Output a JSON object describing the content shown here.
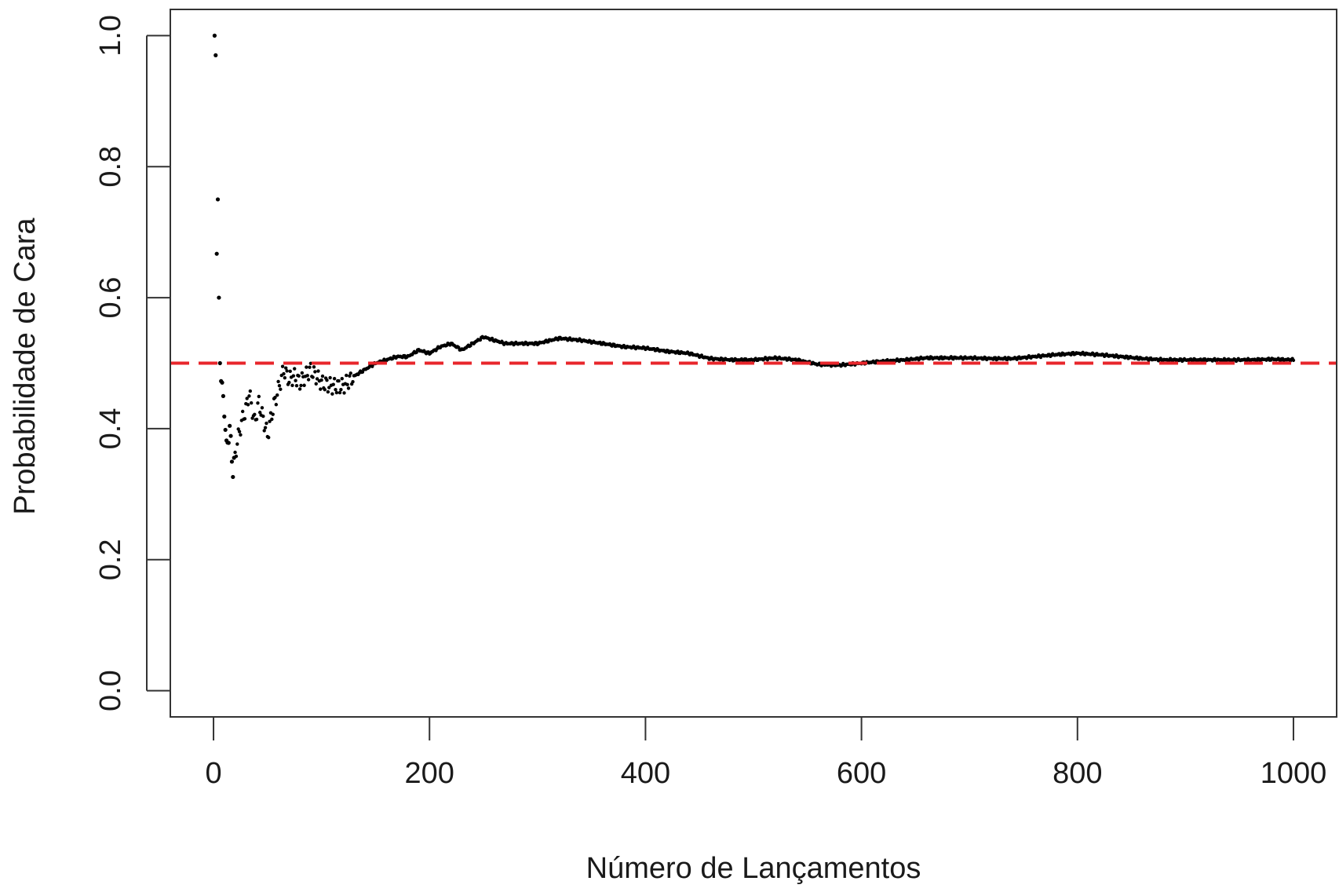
{
  "chart_data": {
    "type": "scatter",
    "title": "",
    "xlabel": "Número de Lançamentos",
    "ylabel": "Probabilidade de Cara",
    "xlim": [
      -40,
      1040
    ],
    "ylim": [
      -0.04,
      1.04
    ],
    "x_ticks": [
      0,
      200,
      400,
      600,
      800,
      1000
    ],
    "y_ticks": [
      0.0,
      0.2,
      0.4,
      0.6,
      0.8,
      1.0
    ],
    "x_tick_labels": [
      "0",
      "200",
      "400",
      "600",
      "800",
      "1000"
    ],
    "y_tick_labels": [
      "0.0",
      "0.2",
      "0.4",
      "0.6",
      "0.8",
      "1.0"
    ],
    "grid": false,
    "reference_line": {
      "y": 0.5,
      "style": "dashed",
      "color": "#e8262b"
    },
    "series_color": "#000000",
    "series_points": 1000,
    "trajectory": [
      [
        1,
        1.0
      ],
      [
        2,
        0.97
      ],
      [
        3,
        0.667
      ],
      [
        4,
        0.75
      ],
      [
        5,
        0.6
      ],
      [
        6,
        0.5
      ],
      [
        8,
        0.46
      ],
      [
        10,
        0.43
      ],
      [
        12,
        0.37
      ],
      [
        15,
        0.4
      ],
      [
        18,
        0.335
      ],
      [
        22,
        0.38
      ],
      [
        26,
        0.41
      ],
      [
        30,
        0.43
      ],
      [
        33,
        0.455
      ],
      [
        38,
        0.41
      ],
      [
        42,
        0.44
      ],
      [
        46,
        0.415
      ],
      [
        50,
        0.39
      ],
      [
        55,
        0.43
      ],
      [
        60,
        0.46
      ],
      [
        65,
        0.49
      ],
      [
        70,
        0.475
      ],
      [
        75,
        0.48
      ],
      [
        80,
        0.47
      ],
      [
        90,
        0.49
      ],
      [
        100,
        0.47
      ],
      [
        110,
        0.465
      ],
      [
        120,
        0.465
      ],
      [
        130,
        0.48
      ],
      [
        140,
        0.49
      ],
      [
        150,
        0.5
      ],
      [
        160,
        0.505
      ],
      [
        170,
        0.51
      ],
      [
        180,
        0.51
      ],
      [
        190,
        0.52
      ],
      [
        200,
        0.515
      ],
      [
        210,
        0.525
      ],
      [
        220,
        0.53
      ],
      [
        230,
        0.52
      ],
      [
        240,
        0.53
      ],
      [
        250,
        0.54
      ],
      [
        260,
        0.535
      ],
      [
        270,
        0.53
      ],
      [
        280,
        0.53
      ],
      [
        300,
        0.53
      ],
      [
        320,
        0.538
      ],
      [
        340,
        0.535
      ],
      [
        360,
        0.53
      ],
      [
        380,
        0.525
      ],
      [
        400,
        0.523
      ],
      [
        420,
        0.518
      ],
      [
        440,
        0.515
      ],
      [
        460,
        0.507
      ],
      [
        480,
        0.505
      ],
      [
        500,
        0.505
      ],
      [
        520,
        0.508
      ],
      [
        540,
        0.505
      ],
      [
        560,
        0.498
      ],
      [
        580,
        0.497
      ],
      [
        600,
        0.5
      ],
      [
        620,
        0.503
      ],
      [
        640,
        0.505
      ],
      [
        660,
        0.508
      ],
      [
        680,
        0.508
      ],
      [
        700,
        0.508
      ],
      [
        720,
        0.507
      ],
      [
        740,
        0.507
      ],
      [
        760,
        0.51
      ],
      [
        780,
        0.513
      ],
      [
        800,
        0.515
      ],
      [
        820,
        0.513
      ],
      [
        840,
        0.51
      ],
      [
        860,
        0.507
      ],
      [
        880,
        0.505
      ],
      [
        900,
        0.505
      ],
      [
        920,
        0.505
      ],
      [
        940,
        0.505
      ],
      [
        960,
        0.505
      ],
      [
        980,
        0.506
      ],
      [
        1000,
        0.505
      ]
    ]
  }
}
